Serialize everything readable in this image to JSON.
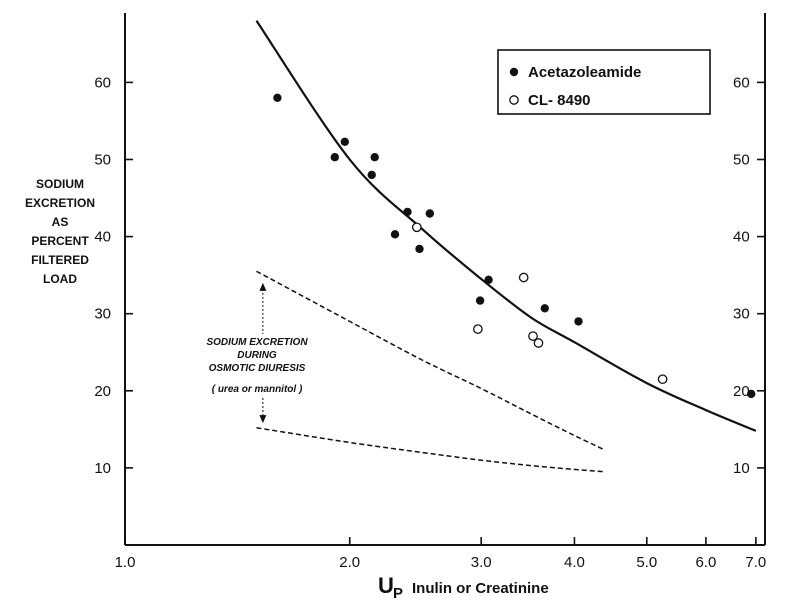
{
  "chart_data": {
    "type": "scatter",
    "title": "",
    "x_scale": "log",
    "xlim": [
      1.0,
      7.2
    ],
    "ylim": [
      0,
      69
    ],
    "grid": false,
    "legend_position": "top-right",
    "x_ticks": [
      {
        "value": 1.0,
        "label": "1.0"
      },
      {
        "value": 2.0,
        "label": "2.0"
      },
      {
        "value": 3.0,
        "label": "3.0"
      },
      {
        "value": 4.0,
        "label": "4.0"
      },
      {
        "value": 5.0,
        "label": "5.0"
      },
      {
        "value": 6.0,
        "label": "6.0"
      },
      {
        "value": 7.0,
        "label": "7.0"
      }
    ],
    "y_ticks": [
      {
        "value": 10,
        "label": "10"
      },
      {
        "value": 20,
        "label": "20"
      },
      {
        "value": 30,
        "label": "30"
      },
      {
        "value": 40,
        "label": "40"
      },
      {
        "value": 50,
        "label": "50"
      },
      {
        "value": 60,
        "label": "60"
      }
    ],
    "xlabel": {
      "prefix": "U",
      "sub": "P",
      "text": "Inulin or Creatinine"
    },
    "ylabel": [
      "SODIUM",
      "EXCRETION",
      "AS",
      "PERCENT",
      "FILTERED",
      "LOAD"
    ],
    "series": [
      {
        "name": "Acetazoleamide",
        "marker": "filled",
        "points": [
          {
            "x": 1.6,
            "y": 58
          },
          {
            "x": 1.91,
            "y": 50.3
          },
          {
            "x": 1.97,
            "y": 52.3
          },
          {
            "x": 2.14,
            "y": 48
          },
          {
            "x": 2.16,
            "y": 50.3
          },
          {
            "x": 2.3,
            "y": 40.3
          },
          {
            "x": 2.39,
            "y": 43.2
          },
          {
            "x": 2.48,
            "y": 38.4
          },
          {
            "x": 2.56,
            "y": 43
          },
          {
            "x": 2.99,
            "y": 31.7
          },
          {
            "x": 3.07,
            "y": 34.4
          },
          {
            "x": 3.65,
            "y": 30.7
          },
          {
            "x": 4.05,
            "y": 29
          },
          {
            "x": 6.9,
            "y": 19.6
          }
        ]
      },
      {
        "name": "CL- 8490",
        "marker": "open",
        "points": [
          {
            "x": 2.46,
            "y": 41.2
          },
          {
            "x": 2.97,
            "y": 28
          },
          {
            "x": 3.42,
            "y": 34.7
          },
          {
            "x": 3.52,
            "y": 27.1
          },
          {
            "x": 3.58,
            "y": 26.2
          },
          {
            "x": 5.25,
            "y": 21.5
          }
        ]
      }
    ],
    "curves": [
      {
        "style": "solid",
        "points": [
          [
            1.5,
            68
          ],
          [
            2.0,
            50
          ],
          [
            2.5,
            41
          ],
          [
            3.0,
            34.5
          ],
          [
            3.5,
            29.5
          ],
          [
            4.0,
            26.3
          ],
          [
            5.0,
            21
          ],
          [
            6.0,
            17.5
          ],
          [
            7.0,
            14.8
          ]
        ]
      },
      {
        "style": "dashed",
        "points": [
          [
            1.5,
            35.5
          ],
          [
            2.0,
            29
          ],
          [
            2.5,
            24
          ],
          [
            3.0,
            20.3
          ],
          [
            3.5,
            17
          ],
          [
            4.0,
            14.2
          ],
          [
            4.4,
            12.3
          ]
        ]
      },
      {
        "style": "dashed",
        "points": [
          [
            1.5,
            15.2
          ],
          [
            2.0,
            13.3
          ],
          [
            2.5,
            12
          ],
          [
            3.0,
            11
          ],
          [
            3.5,
            10.3
          ],
          [
            4.0,
            9.8
          ],
          [
            4.4,
            9.5
          ]
        ]
      }
    ],
    "annotation": {
      "lines": [
        "SODIUM EXCRETION",
        "DURING",
        "OSMOTIC DIURESIS",
        "( urea or mannitol )"
      ],
      "arrow_x": 1.53,
      "arrow_y_top": 34,
      "arrow_y_bottom": 15.8
    }
  }
}
